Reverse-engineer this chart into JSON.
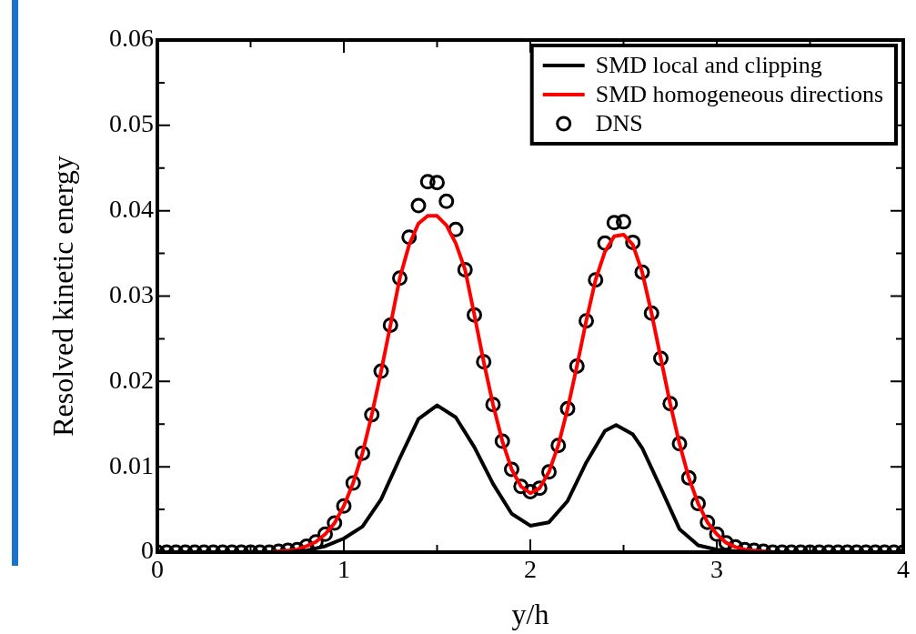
{
  "chart_data": {
    "type": "line",
    "xlabel": "y/h",
    "ylabel": "Resolved kinetic energy",
    "xlim": [
      0,
      4
    ],
    "ylim": [
      0,
      0.06
    ],
    "xticks": [
      0,
      {
        "value": 0.5,
        "label": null
      },
      1,
      {
        "value": 1.5,
        "label": null
      },
      2,
      {
        "value": 2.5,
        "label": null
      },
      3,
      {
        "value": 3.5,
        "label": null
      },
      4
    ],
    "yticks": [
      0,
      {
        "value": 0.005,
        "label": null
      },
      0.01,
      {
        "value": 0.015,
        "label": null
      },
      0.02,
      {
        "value": 0.025,
        "label": null
      },
      0.03,
      {
        "value": 0.035,
        "label": null
      },
      0.04,
      {
        "value": 0.045,
        "label": null
      },
      0.05,
      {
        "value": 0.055,
        "label": null
      },
      0.06
    ],
    "grid": false,
    "legend": "top right",
    "series": [
      {
        "name": "SMD local and clipping",
        "color": "#000000",
        "marker": "none",
        "x": [
          0,
          0.7,
          0.8,
          0.9,
          1.0,
          1.1,
          1.2,
          1.3,
          1.4,
          1.5,
          1.6,
          1.7,
          1.8,
          1.9,
          2.0,
          2.1,
          2.2,
          2.3,
          2.4,
          2.46,
          2.55,
          2.6,
          2.7,
          2.8,
          2.9,
          3.0,
          3.1,
          3.2,
          4
        ],
        "values": [
          0,
          0,
          0.0002,
          0.0007,
          0.0016,
          0.003,
          0.0062,
          0.011,
          0.0156,
          0.0172,
          0.0158,
          0.0123,
          0.008,
          0.0045,
          0.0031,
          0.0035,
          0.006,
          0.0105,
          0.0142,
          0.0149,
          0.0138,
          0.0122,
          0.0075,
          0.0027,
          0.0008,
          0.0003,
          0.0001,
          0,
          0
        ]
      },
      {
        "name": "SMD homogeneous directions",
        "color": "#ff0000",
        "marker": "none",
        "x": [
          0,
          0.6,
          0.65,
          0.7,
          0.75,
          0.8,
          0.85,
          0.9,
          0.95,
          1.0,
          1.05,
          1.1,
          1.15,
          1.2,
          1.25,
          1.3,
          1.35,
          1.4,
          1.45,
          1.5,
          1.55,
          1.6,
          1.65,
          1.7,
          1.75,
          1.8,
          1.85,
          1.9,
          1.95,
          2.0,
          2.05,
          2.1,
          2.15,
          2.2,
          2.25,
          2.3,
          2.35,
          2.4,
          2.45,
          2.5,
          2.55,
          2.6,
          2.65,
          2.7,
          2.75,
          2.8,
          2.85,
          2.9,
          2.95,
          3.0,
          3.05,
          3.1,
          3.15,
          3.2,
          3.3,
          4
        ],
        "values": [
          0,
          0,
          0.0001,
          0.0002,
          0.0003,
          0.0007,
          0.0012,
          0.0021,
          0.0034,
          0.0054,
          0.0081,
          0.0116,
          0.0161,
          0.0212,
          0.0266,
          0.0321,
          0.036,
          0.0385,
          0.0394,
          0.0394,
          0.0383,
          0.0362,
          0.0331,
          0.0278,
          0.0223,
          0.0173,
          0.013,
          0.0097,
          0.0077,
          0.0069,
          0.0075,
          0.0094,
          0.0125,
          0.0168,
          0.0218,
          0.0271,
          0.0319,
          0.0352,
          0.037,
          0.0372,
          0.036,
          0.0328,
          0.028,
          0.0227,
          0.0174,
          0.0127,
          0.0087,
          0.0057,
          0.0035,
          0.0021,
          0.0011,
          0.0006,
          0.0003,
          0.0002,
          0,
          0
        ]
      },
      {
        "name": "DNS",
        "type": "scatter",
        "color": "#000000",
        "marker": "circle",
        "x": [
          0,
          0.05,
          0.1,
          0.15,
          0.2,
          0.25,
          0.3,
          0.35,
          0.4,
          0.45,
          0.5,
          0.55,
          0.6,
          0.65,
          0.7,
          0.75,
          0.8,
          0.85,
          0.9,
          0.95,
          1.0,
          1.05,
          1.1,
          1.15,
          1.2,
          1.25,
          1.3,
          1.35,
          1.4,
          1.45,
          1.5,
          1.55,
          1.6,
          1.65,
          1.7,
          1.75,
          1.8,
          1.85,
          1.9,
          1.95,
          2.0,
          2.05,
          2.1,
          2.15,
          2.2,
          2.25,
          2.3,
          2.35,
          2.4,
          2.45,
          2.5,
          2.55,
          2.6,
          2.65,
          2.7,
          2.75,
          2.8,
          2.85,
          2.9,
          2.95,
          3.0,
          3.05,
          3.1,
          3.15,
          3.2,
          3.25,
          3.3,
          3.35,
          3.4,
          3.45,
          3.5,
          3.55,
          3.6,
          3.65,
          3.7,
          3.75,
          3.8,
          3.85,
          3.9,
          3.95,
          4.0
        ],
        "values": [
          0,
          0,
          0,
          0,
          0,
          0,
          0,
          0,
          0,
          0,
          0,
          0,
          0,
          0.0001,
          0.0002,
          0.0003,
          0.0007,
          0.0012,
          0.0021,
          0.0034,
          0.0054,
          0.0081,
          0.0116,
          0.0161,
          0.0212,
          0.0266,
          0.0321,
          0.0369,
          0.0406,
          0.0434,
          0.0433,
          0.0411,
          0.0378,
          0.0331,
          0.0278,
          0.0223,
          0.0173,
          0.013,
          0.0097,
          0.0077,
          0.0071,
          0.0075,
          0.0094,
          0.0125,
          0.0168,
          0.0218,
          0.0271,
          0.0319,
          0.0362,
          0.0386,
          0.0387,
          0.0363,
          0.0328,
          0.028,
          0.0227,
          0.0174,
          0.0127,
          0.0087,
          0.0057,
          0.0035,
          0.0021,
          0.0011,
          0.0006,
          0.0003,
          0.0002,
          0.0001,
          0,
          0,
          0,
          0,
          0,
          0,
          0,
          0,
          0,
          0,
          0,
          0,
          0,
          0,
          0
        ]
      }
    ]
  }
}
